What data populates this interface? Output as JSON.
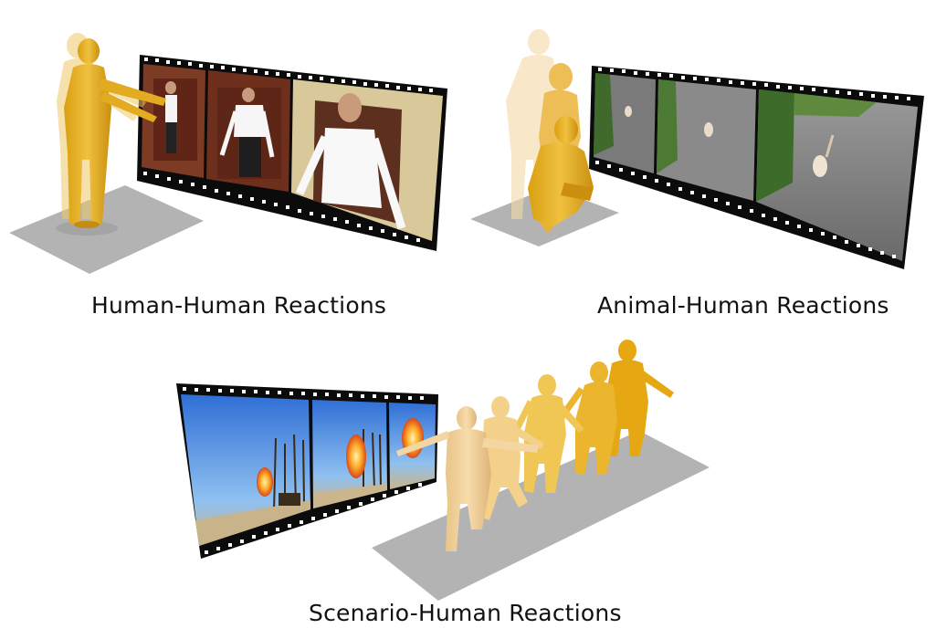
{
  "captions": {
    "human_human": "Human-Human Reactions",
    "animal_human": "Animal-Human Reactions",
    "scenario_human": "Scenario-Human Reactions"
  },
  "colors": {
    "body_gold": "#E9B42A",
    "body_light": "#F3D08A",
    "body_pale": "#F6D9A7",
    "floor": "#B5B5B5",
    "film": "#0A0A0A"
  }
}
